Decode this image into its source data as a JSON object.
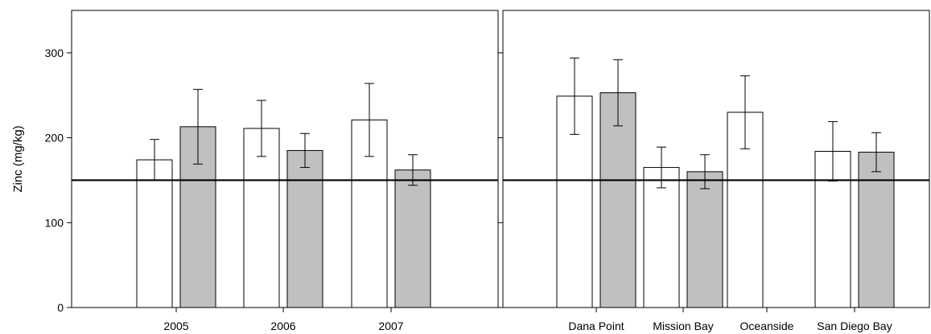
{
  "chart_data": [
    {
      "type": "bar",
      "panel": "left",
      "ylabel": "Zinc (mg/kg)",
      "ylim": [
        0,
        350
      ],
      "yticks": [
        0,
        100,
        200,
        300
      ],
      "categories": [
        "2005",
        "2006",
        "2007"
      ],
      "reference_line": 150,
      "colors": [
        "#ffffff",
        "#c0c0c0"
      ],
      "series": [
        {
          "values": [
            174,
            211,
            221
          ],
          "error": [
            24,
            33,
            43
          ],
          "color": "#ffffff"
        },
        {
          "values": [
            213,
            185,
            162
          ],
          "error": [
            44,
            20,
            18
          ],
          "color": "#c0c0c0"
        }
      ]
    },
    {
      "type": "bar",
      "panel": "right",
      "ylabel": "",
      "ylim": [
        0,
        350
      ],
      "yticks": [
        0,
        100,
        200,
        300
      ],
      "categories": [
        "Dana Point",
        "Mission Bay",
        "Oceanside",
        "San Diego Bay"
      ],
      "reference_line": 150,
      "colors": [
        "#ffffff",
        "#c0c0c0"
      ],
      "series": [
        {
          "values": [
            249,
            165,
            230,
            184
          ],
          "error": [
            45,
            24,
            43,
            35
          ],
          "color": "#ffffff"
        },
        {
          "values": [
            253,
            160,
            null,
            183
          ],
          "error": [
            39,
            20,
            null,
            23
          ],
          "color": "#c0c0c0"
        }
      ]
    }
  ]
}
